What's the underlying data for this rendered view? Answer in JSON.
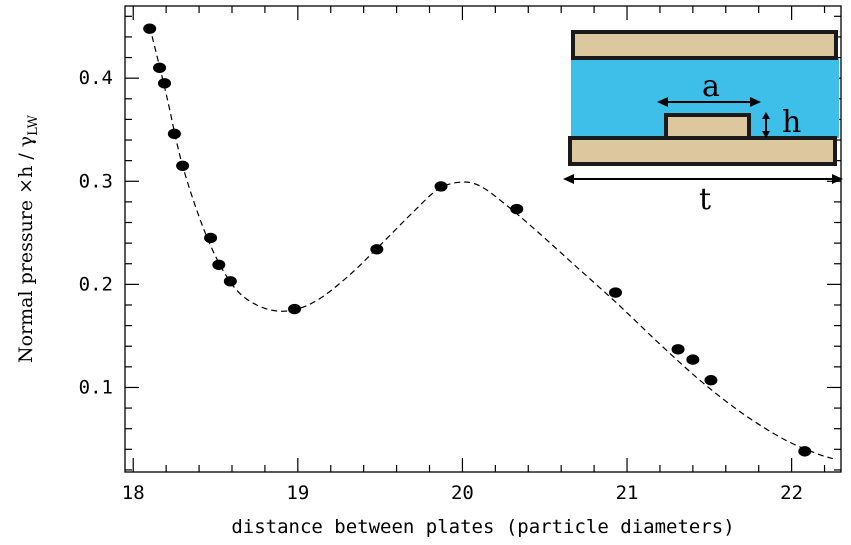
{
  "chart_data": {
    "type": "scatter",
    "xlabel": "distance between plates  (particle diameters)",
    "ylabel_main": "Normal pressure ×h / γ",
    "ylabel_sub": "LW",
    "xlim": [
      17.95,
      22.3
    ],
    "ylim": [
      0.018,
      0.47
    ],
    "xticks": [
      18,
      19,
      20,
      21,
      22
    ],
    "yticks": [
      0.1,
      0.2,
      0.3,
      0.4
    ],
    "ytick_labels": [
      "0.1",
      "0.2",
      "0.3",
      "0.4"
    ],
    "series": [
      {
        "style": "points",
        "x": [
          18.1,
          18.16,
          18.19,
          18.25,
          18.3,
          18.47,
          18.52,
          18.59,
          18.98,
          19.48,
          19.87,
          20.33,
          20.93,
          21.31,
          21.4,
          21.51,
          22.08
        ],
        "y": [
          0.448,
          0.41,
          0.395,
          0.346,
          0.315,
          0.245,
          0.219,
          0.203,
          0.176,
          0.234,
          0.295,
          0.273,
          0.192,
          0.137,
          0.127,
          0.107,
          0.038
        ]
      },
      {
        "style": "dashed-curve",
        "x": [
          18.1,
          18.2,
          18.3,
          18.45,
          18.6,
          18.75,
          18.92,
          19.1,
          19.3,
          19.5,
          19.7,
          19.85,
          19.98,
          20.1,
          20.25,
          20.45,
          20.7,
          20.95,
          21.2,
          21.45,
          21.7,
          21.95,
          22.15,
          22.25
        ],
        "y": [
          0.45,
          0.385,
          0.315,
          0.245,
          0.2,
          0.18,
          0.174,
          0.183,
          0.207,
          0.238,
          0.27,
          0.292,
          0.299,
          0.296,
          0.279,
          0.252,
          0.216,
          0.18,
          0.142,
          0.106,
          0.075,
          0.05,
          0.036,
          0.031
        ]
      }
    ]
  },
  "inset": {
    "label_a": "a",
    "label_h": "h",
    "label_t": "t",
    "colors": {
      "plate": "#dcc79e",
      "fluid": "#3dbfe9",
      "outline": "#1a1a1a"
    }
  }
}
